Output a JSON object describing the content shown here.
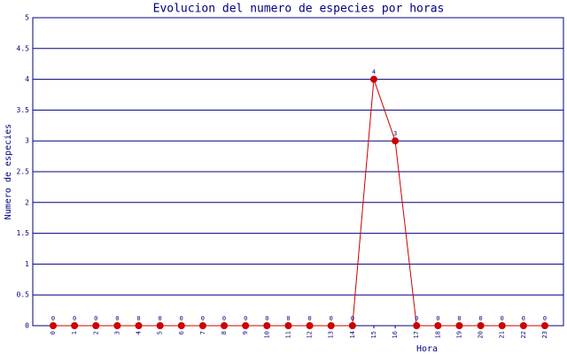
{
  "chart_data": {
    "type": "line",
    "title": "Evolucion del numero de especies por horas",
    "x_label": "Hora",
    "y_label": "Numero de especies",
    "categories": [
      "0",
      "1",
      "2",
      "3",
      "4",
      "5",
      "6",
      "7",
      "8",
      "9",
      "10",
      "11",
      "12",
      "13",
      "14",
      "15",
      "16",
      "17",
      "18",
      "19",
      "20",
      "21",
      "22",
      "23"
    ],
    "series": [
      {
        "name": "especies",
        "color": "#cc0000",
        "values": [
          0,
          0,
          0,
          0,
          0,
          0,
          0,
          0,
          0,
          0,
          0,
          0,
          0,
          0,
          0,
          4,
          3,
          0,
          0,
          0,
          0,
          0,
          0,
          0
        ]
      }
    ],
    "ylim": [
      0,
      5
    ],
    "yticks": [
      0,
      0.5,
      1,
      1.5,
      2,
      2.5,
      3,
      3.5,
      4,
      4.5,
      5
    ],
    "grid": true,
    "data_labels": true
  }
}
